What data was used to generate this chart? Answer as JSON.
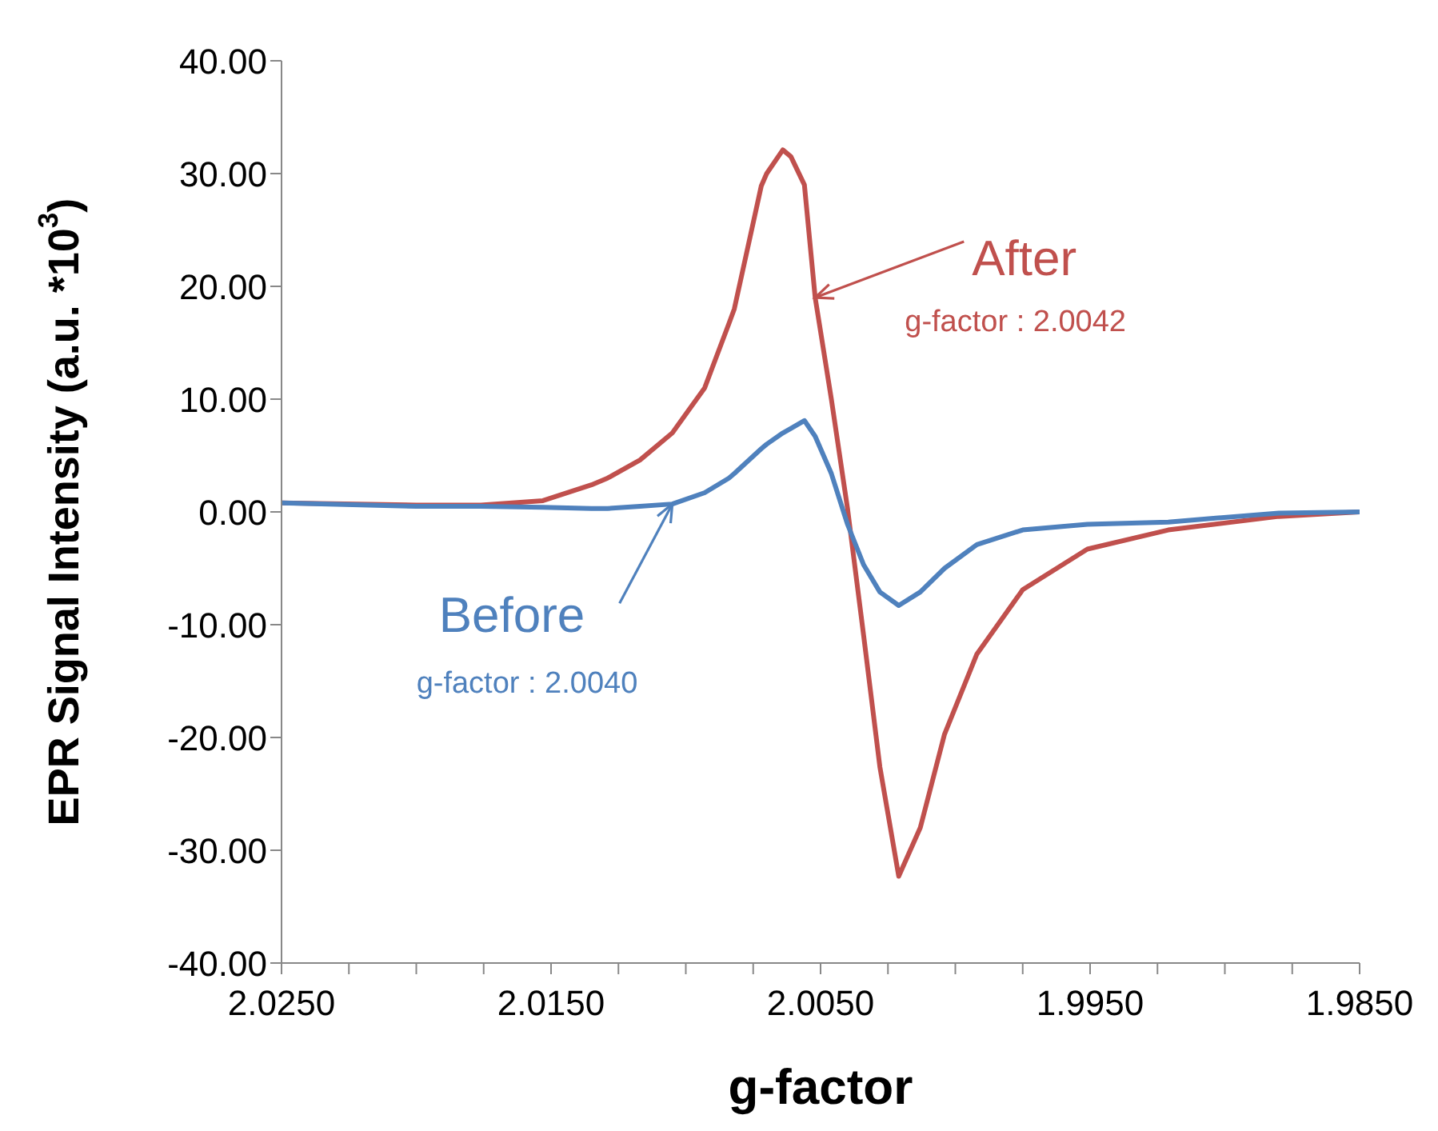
{
  "chart_data": {
    "type": "line",
    "xlabel": "g-factor",
    "ylabel": "EPR Signal Intensity (a.u. *10$^{3}$)",
    "x": [
      2.025,
      2.02,
      2.0176,
      2.0153,
      2.0135,
      2.0129,
      2.0117,
      2.0105,
      2.0093,
      2.0084,
      2.0082,
      2.0072,
      2.007,
      2.0064,
      2.0061,
      2.0056,
      2.0052,
      2.0046,
      2.004,
      2.0034,
      2.0028,
      2.0021,
      2.0013,
      2.0004,
      1.9992,
      1.9975,
      1.9951,
      1.9921,
      1.988,
      1.985
    ],
    "series": [
      {
        "name": "After",
        "color": "#c0504d",
        "values": [
          0.8,
          0.6,
          0.6,
          1.0,
          2.4,
          3.0,
          4.6,
          7.0,
          11.0,
          16.7,
          18.0,
          28.9,
          30.0,
          32.1,
          31.5,
          29.0,
          19.0,
          10.0,
          0.3,
          -11.0,
          -22.6,
          -32.3,
          -28.0,
          -19.7,
          -12.6,
          -6.9,
          -3.3,
          -1.6,
          -0.4,
          0
        ]
      },
      {
        "name": "Before",
        "color": "#4f81bd",
        "values": [
          0.8,
          0.5,
          0.5,
          0.4,
          0.3,
          0.3,
          0.5,
          0.7,
          1.7,
          3.0,
          3.4,
          5.6,
          6.0,
          7.0,
          7.4,
          8.1,
          6.7,
          3.4,
          -1.1,
          -4.7,
          -7.1,
          -8.3,
          -7.1,
          -5.0,
          -2.9,
          -1.6,
          -1.1,
          -0.9,
          -0.1,
          0
        ]
      }
    ],
    "annotations": [
      "g-factor : 2.0042",
      "g-factor : 2.0040"
    ],
    "xlim": [
      2.025,
      1.985
    ],
    "xticks": [
      {
        "value": 2.025,
        "label": "2.0250"
      },
      {
        "value": 2.0225,
        "label": null
      },
      {
        "value": 2.02,
        "label": null
      },
      {
        "value": 2.0175,
        "label": null
      },
      {
        "value": 2.015,
        "label": "2.0150"
      },
      {
        "value": 2.0125,
        "label": null
      },
      {
        "value": 2.01,
        "label": null
      },
      {
        "value": 2.0075,
        "label": null
      },
      {
        "value": 2.005,
        "label": "2.0050"
      },
      {
        "value": 2.0025,
        "label": null
      },
      {
        "value": 2.0,
        "label": null
      },
      {
        "value": 1.9975,
        "label": null
      },
      {
        "value": 1.995,
        "label": "1.9950"
      },
      {
        "value": 1.9925,
        "label": null
      },
      {
        "value": 1.99,
        "label": null
      },
      {
        "value": 1.9875,
        "label": null
      },
      {
        "value": 1.985,
        "label": "1.9850"
      }
    ],
    "ylim": [
      -40,
      40
    ],
    "yticks": [
      {
        "value": -40,
        "label": "-40.00"
      },
      {
        "value": -30,
        "label": "-30.00"
      },
      {
        "value": -20,
        "label": "-20.00"
      },
      {
        "value": -10,
        "label": "-10.00"
      },
      {
        "value": 0,
        "label": "0.00"
      },
      {
        "value": 10,
        "label": "10.00"
      },
      {
        "value": 20,
        "label": "20.00"
      },
      {
        "value": 30,
        "label": "30.00"
      },
      {
        "value": 40,
        "label": "40.00"
      }
    ],
    "grid": false,
    "marker": "none",
    "line_style": "solid"
  }
}
